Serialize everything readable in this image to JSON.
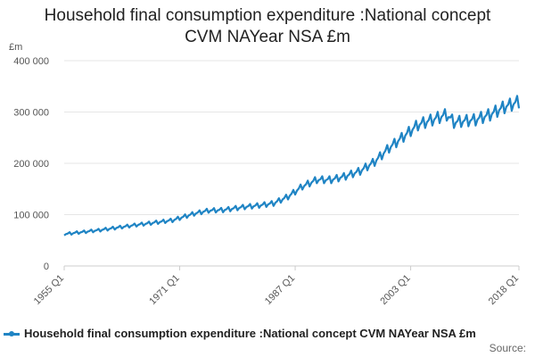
{
  "chart_data": {
    "type": "line",
    "title_lines": [
      "Household final consumption expenditure :National concept",
      "CVM NAYear NSA £m"
    ],
    "ylabel": "£m",
    "xlabel": "",
    "ylim": [
      0,
      400000
    ],
    "y_ticks": [
      0,
      100000,
      200000,
      300000,
      400000
    ],
    "y_tick_labels": [
      "0",
      "100 000",
      "200 000",
      "300 000",
      "400 000"
    ],
    "x_range": [
      1955.0,
      2018.0
    ],
    "x_ticks": [
      1955.0,
      1971.0,
      1987.0,
      2003.0,
      2018.0
    ],
    "x_tick_labels": [
      "1955 Q1",
      "1971 Q1",
      "1987 Q1",
      "2003 Q1",
      "2018 Q1"
    ],
    "grid": true,
    "series": [
      {
        "name": "Household final consumption expenditure :National concept CVM NAYear NSA £m",
        "color": "#1f84c4",
        "frequency": "quarterly",
        "seasonal_amplitude_pct": 4,
        "trend_points": [
          [
            1955,
            62000
          ],
          [
            1960,
            70000
          ],
          [
            1965,
            80000
          ],
          [
            1970,
            89000
          ],
          [
            1973,
            102000
          ],
          [
            1975,
            108000
          ],
          [
            1977,
            109000
          ],
          [
            1980,
            115000
          ],
          [
            1982,
            118000
          ],
          [
            1984,
            122000
          ],
          [
            1986,
            135000
          ],
          [
            1988,
            155000
          ],
          [
            1990,
            168000
          ],
          [
            1992,
            168000
          ],
          [
            1994,
            175000
          ],
          [
            1996,
            185000
          ],
          [
            1998,
            203000
          ],
          [
            2000,
            230000
          ],
          [
            2002,
            252000
          ],
          [
            2004,
            275000
          ],
          [
            2008,
            295000
          ],
          [
            2009,
            280000
          ],
          [
            2010,
            282000
          ],
          [
            2012,
            285000
          ],
          [
            2014,
            295000
          ],
          [
            2016,
            310000
          ],
          [
            2018,
            320000
          ]
        ]
      }
    ],
    "legend": "bottom",
    "source_label": "Source:"
  }
}
